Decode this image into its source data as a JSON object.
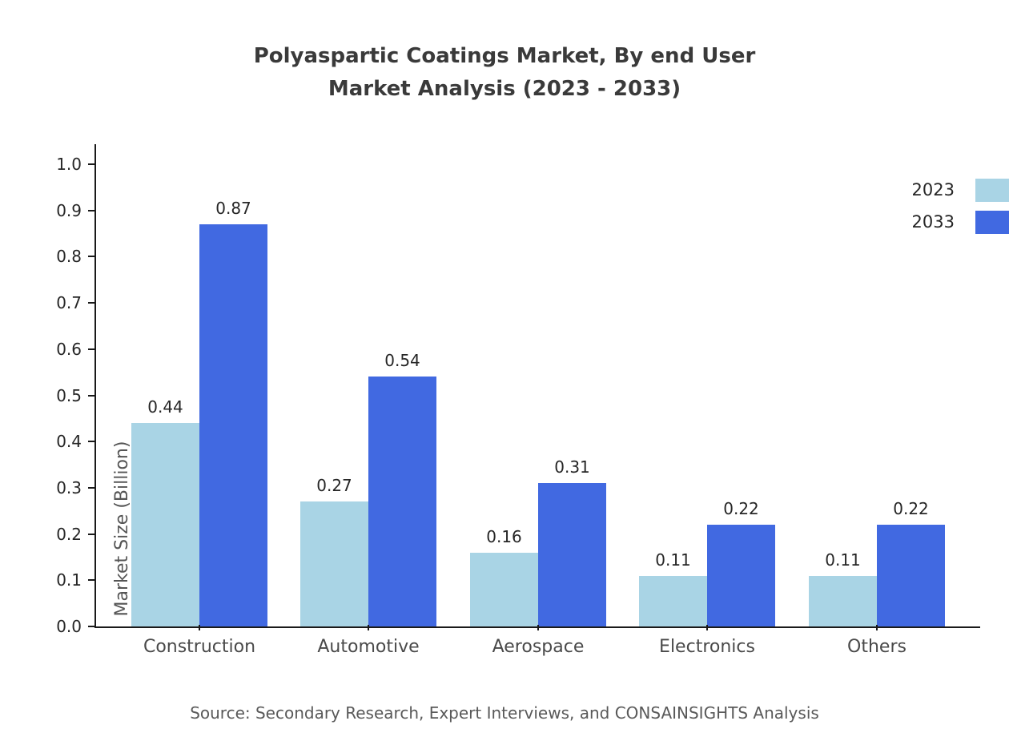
{
  "title": {
    "line1": "Polyaspartic Coatings Market, By end User",
    "line2": "Market Analysis (2023 - 2033)"
  },
  "ylabel": "Market Size (Billion)",
  "source": "Source: Secondary Research, Expert Interviews, and CONSAINSIGHTS Analysis",
  "legend": [
    {
      "label": "2023",
      "color": "#A9D4E5"
    },
    {
      "label": "2033",
      "color": "#4169E1"
    }
  ],
  "chart_data": {
    "type": "bar",
    "categories": [
      "Construction",
      "Automotive",
      "Aerospace",
      "Electronics",
      "Others"
    ],
    "series": [
      {
        "name": "2023",
        "color": "#A9D4E5",
        "values": [
          0.44,
          0.27,
          0.16,
          0.11,
          0.11
        ]
      },
      {
        "name": "2033",
        "color": "#4169E1",
        "values": [
          0.87,
          0.54,
          0.31,
          0.22,
          0.22
        ]
      }
    ],
    "title": "Polyaspartic Coatings Market, By end User Market Analysis (2023 - 2033)",
    "xlabel": "",
    "ylabel": "Market Size (Billion)",
    "ylim": [
      0.0,
      1.0
    ],
    "yticks": [
      0.0,
      0.1,
      0.2,
      0.3,
      0.4,
      0.5,
      0.6,
      0.7,
      0.8,
      0.9,
      1.0
    ],
    "grid": false,
    "legend_position": "top-right",
    "value_labels": true
  }
}
